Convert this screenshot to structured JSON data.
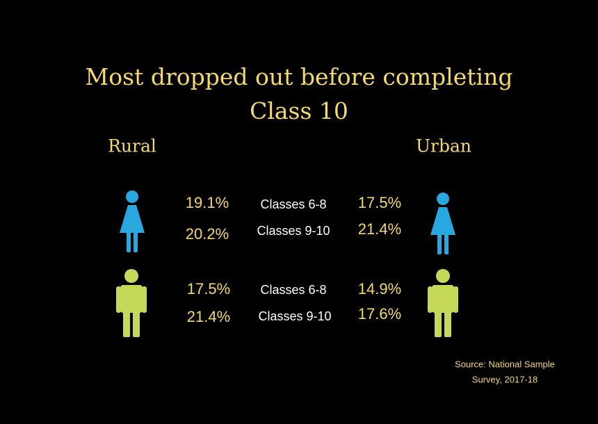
{
  "title": [
    "Most dropped out before completing",
    "Class 10"
  ],
  "columns": {
    "rural": "Rural",
    "urban": "Urban"
  },
  "groups": [
    {
      "rows": [
        {
          "label": "Classes 6-8",
          "rural": "19.1%",
          "urban": "17.5%"
        },
        {
          "label": "Classes 9-10",
          "rural": "20.2%",
          "urban": "21.4%"
        }
      ]
    },
    {
      "rows": [
        {
          "label": "Classes 6-8",
          "rural": "17.5%",
          "urban": "14.9%"
        },
        {
          "label": "Classes 9-10",
          "rural": "21.4%",
          "urban": "17.6%"
        }
      ]
    }
  ],
  "source": [
    "Source: National Sample",
    "Survey, 2017-18"
  ]
}
